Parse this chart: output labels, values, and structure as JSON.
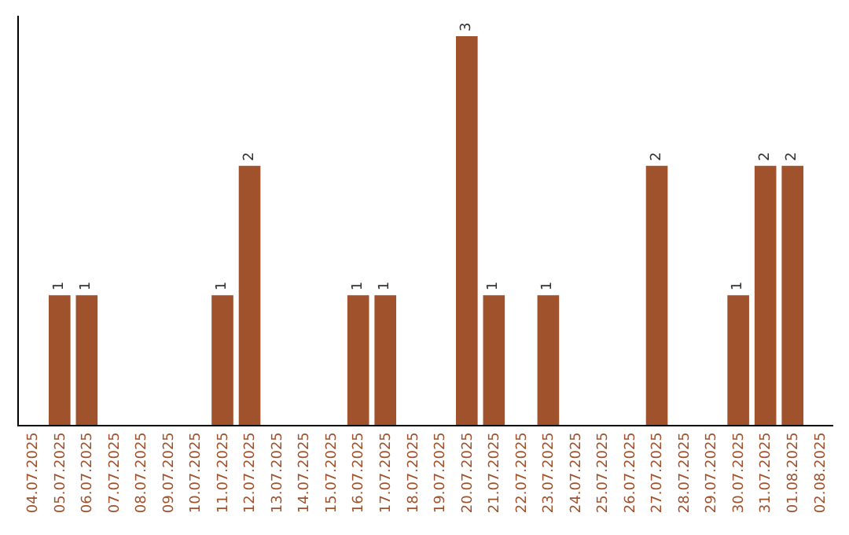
{
  "chart_data": {
    "type": "bar",
    "categories": [
      "04.07.2025",
      "05.07.2025",
      "06.07.2025",
      "07.07.2025",
      "08.07.2025",
      "09.07.2025",
      "10.07.2025",
      "11.07.2025",
      "12.07.2025",
      "13.07.2025",
      "14.07.2025",
      "15.07.2025",
      "16.07.2025",
      "17.07.2025",
      "18.07.2025",
      "19.07.2025",
      "20.07.2025",
      "21.07.2025",
      "22.07.2025",
      "23.07.2025",
      "24.07.2025",
      "25.07.2025",
      "26.07.2025",
      "27.07.2025",
      "28.07.2025",
      "29.07.2025",
      "30.07.2025",
      "31.07.2025",
      "01.08.2025",
      "02.08.2025"
    ],
    "values": [
      0,
      1,
      1,
      0,
      0,
      0,
      0,
      1,
      2,
      0,
      0,
      0,
      1,
      1,
      0,
      0,
      3,
      1,
      0,
      1,
      0,
      0,
      0,
      2,
      0,
      0,
      1,
      2,
      2,
      0
    ],
    "value_labels": [
      null,
      "1",
      "1",
      null,
      null,
      null,
      null,
      "1",
      "2",
      null,
      null,
      null,
      "1",
      "1",
      null,
      null,
      "3",
      "1",
      null,
      "1",
      null,
      null,
      null,
      "2",
      null,
      null,
      "1",
      "2",
      "2",
      null
    ],
    "color": "#a0522d",
    "legend": false,
    "tick_labels": "x"
  }
}
